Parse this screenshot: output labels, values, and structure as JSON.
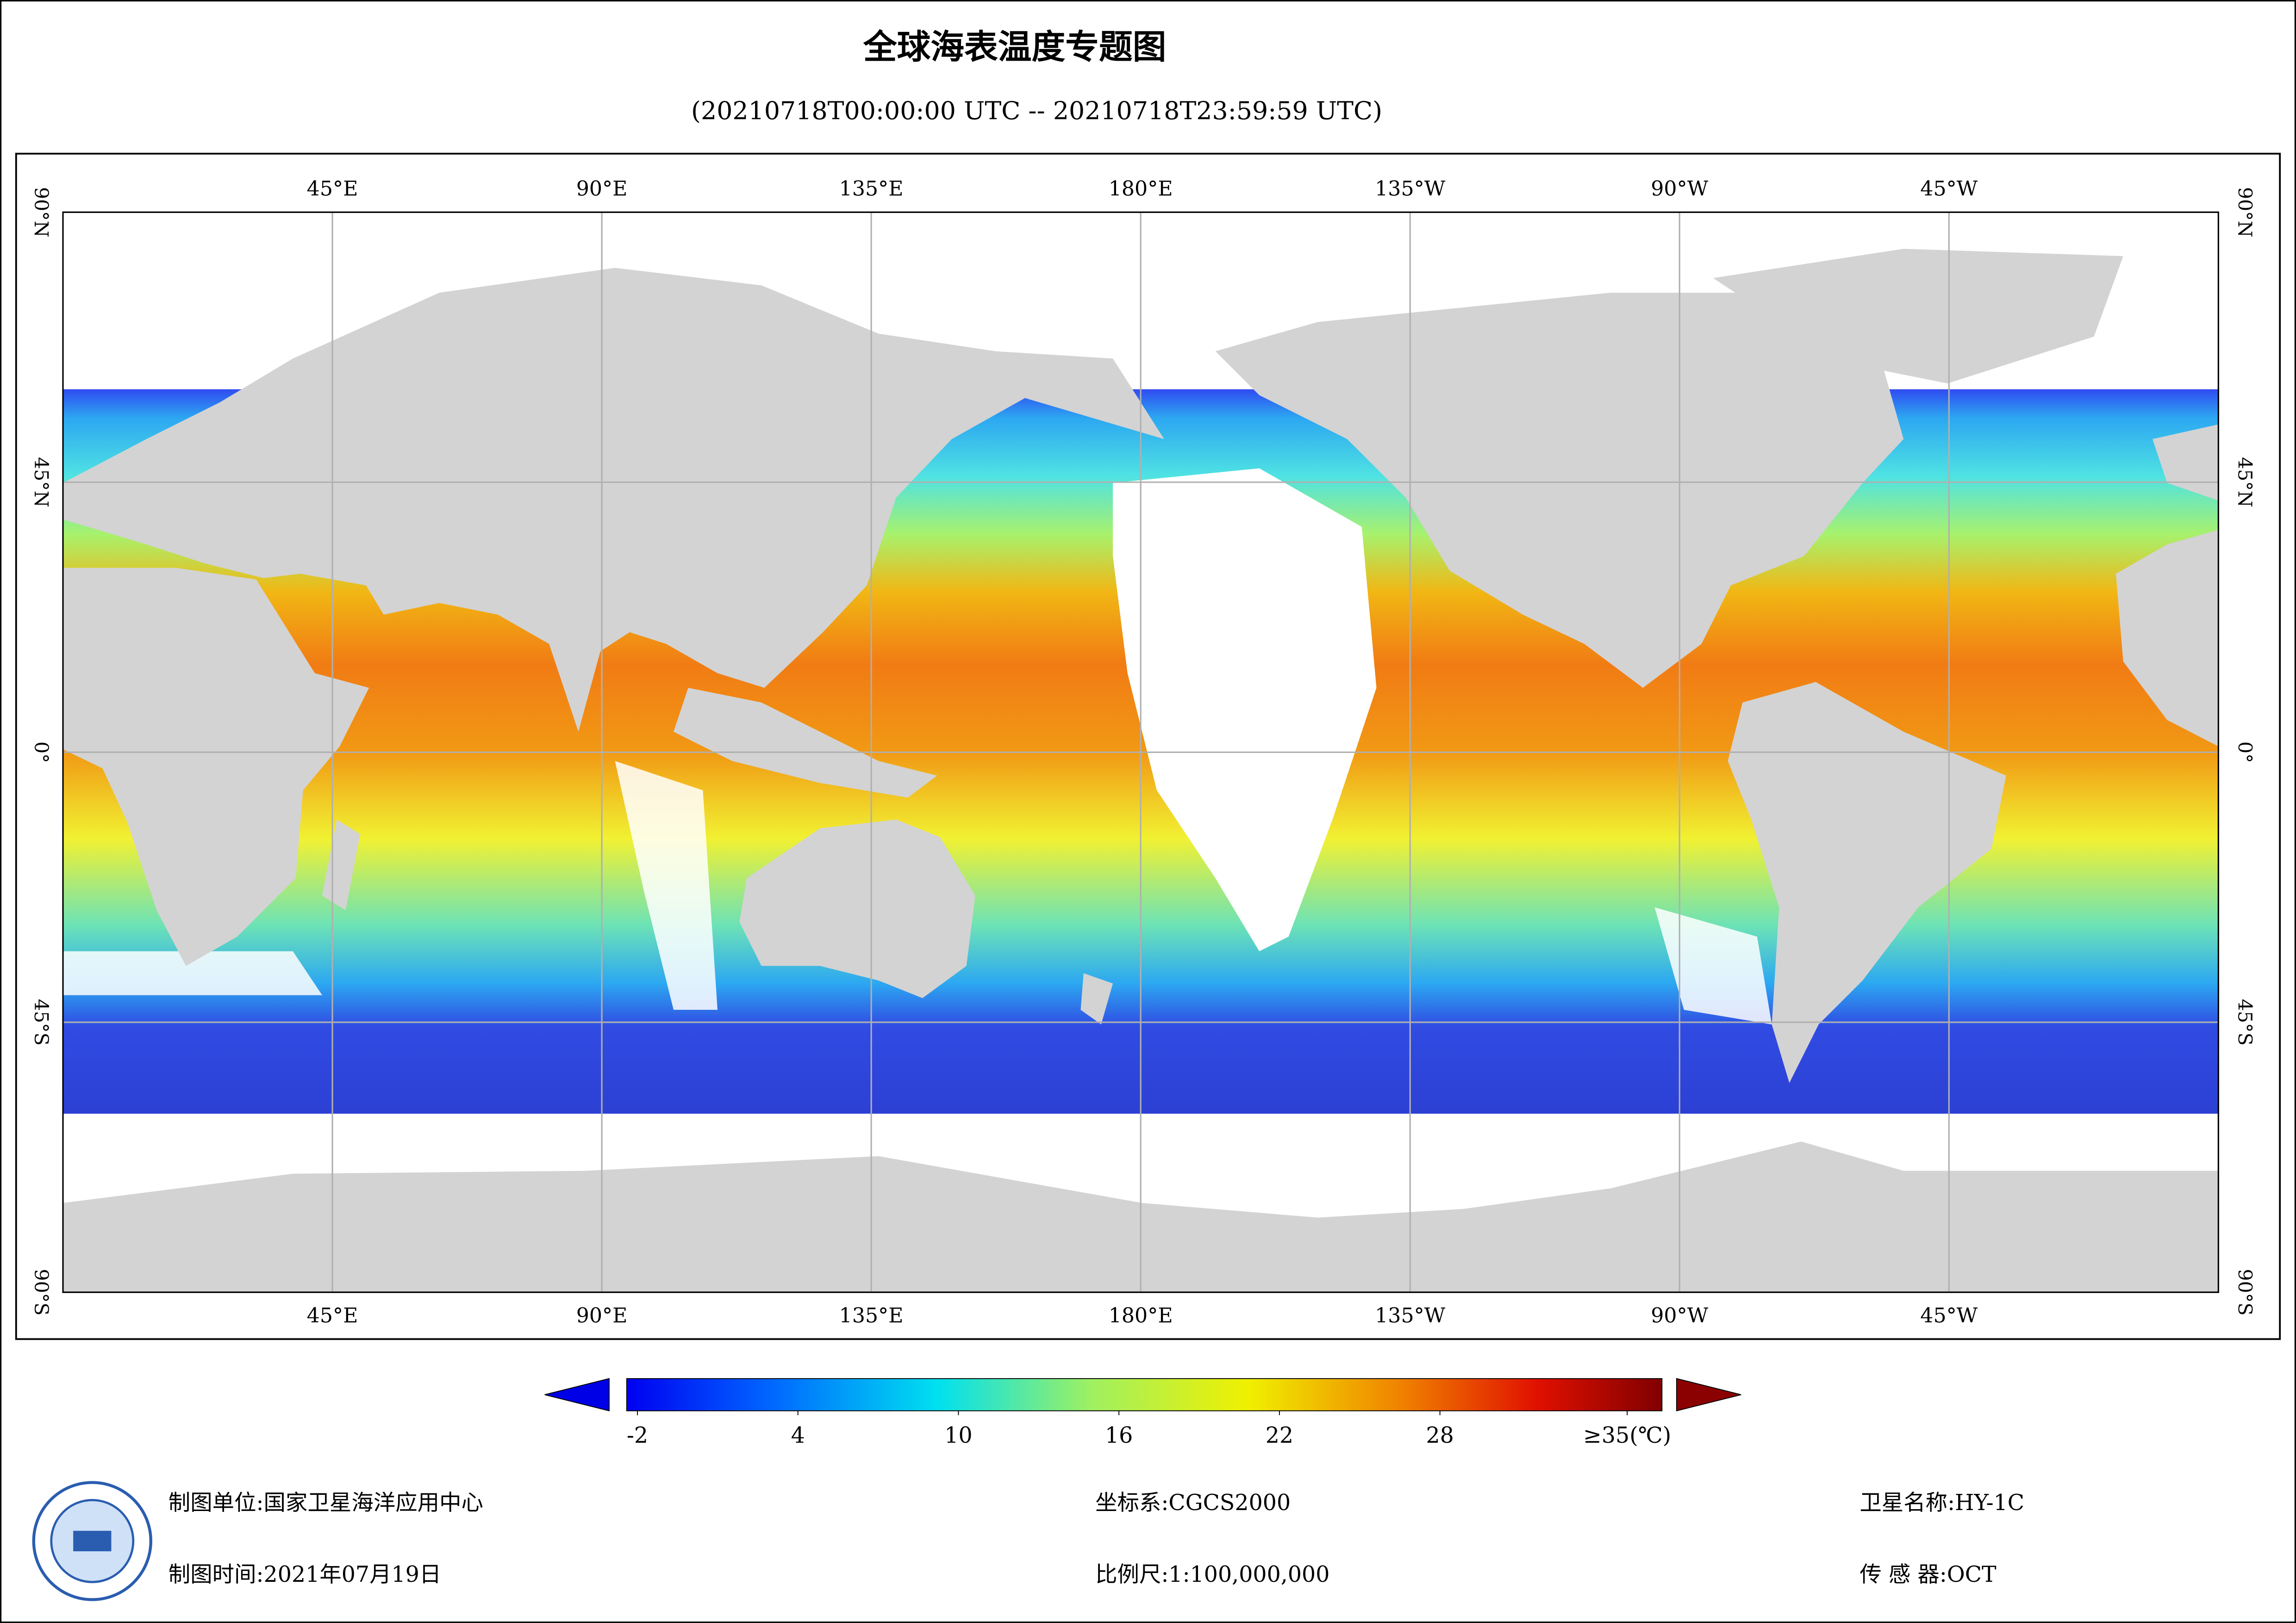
{
  "title": "全球海表温度专题图",
  "subtitle": "(20210718T00:00:00 UTC -- 20210718T23:59:59 UTC)",
  "map": {
    "lonlim": [
      0,
      360
    ],
    "latlim": [
      -90,
      90
    ],
    "lonticks": [
      {
        "value": 45,
        "label": "45°E"
      },
      {
        "value": 90,
        "label": "90°E"
      },
      {
        "value": 135,
        "label": "135°E"
      },
      {
        "value": 180,
        "label": "180°E"
      },
      {
        "value": 225,
        "label": "135°W"
      },
      {
        "value": 270,
        "label": "90°W"
      },
      {
        "value": 315,
        "label": "45°W"
      }
    ],
    "latticks": [
      {
        "value": 90,
        "label": "90°N"
      },
      {
        "value": 45,
        "label": "45°N"
      },
      {
        "value": 0,
        "label": "0°"
      },
      {
        "value": -45,
        "label": "45°S"
      },
      {
        "value": -90,
        "label": "90°S"
      }
    ],
    "grid": true
  },
  "colorbar": {
    "range": [
      -2.4,
      36.3
    ],
    "ticks": [
      -2,
      4,
      10,
      16,
      22,
      28,
      {
        "value": 35,
        "label": "≥35(℃)"
      }
    ]
  },
  "footer": {
    "unit": "制图单位:国家卫星海洋应用中心",
    "time": "制图时间:2021年07月19日",
    "crs": "坐标系:CGCS2000",
    "scale": "比例尺:1:100,000,000",
    "satellite": "卫星名称:HY-1C",
    "sensor": "传 感 器:OCT"
  }
}
